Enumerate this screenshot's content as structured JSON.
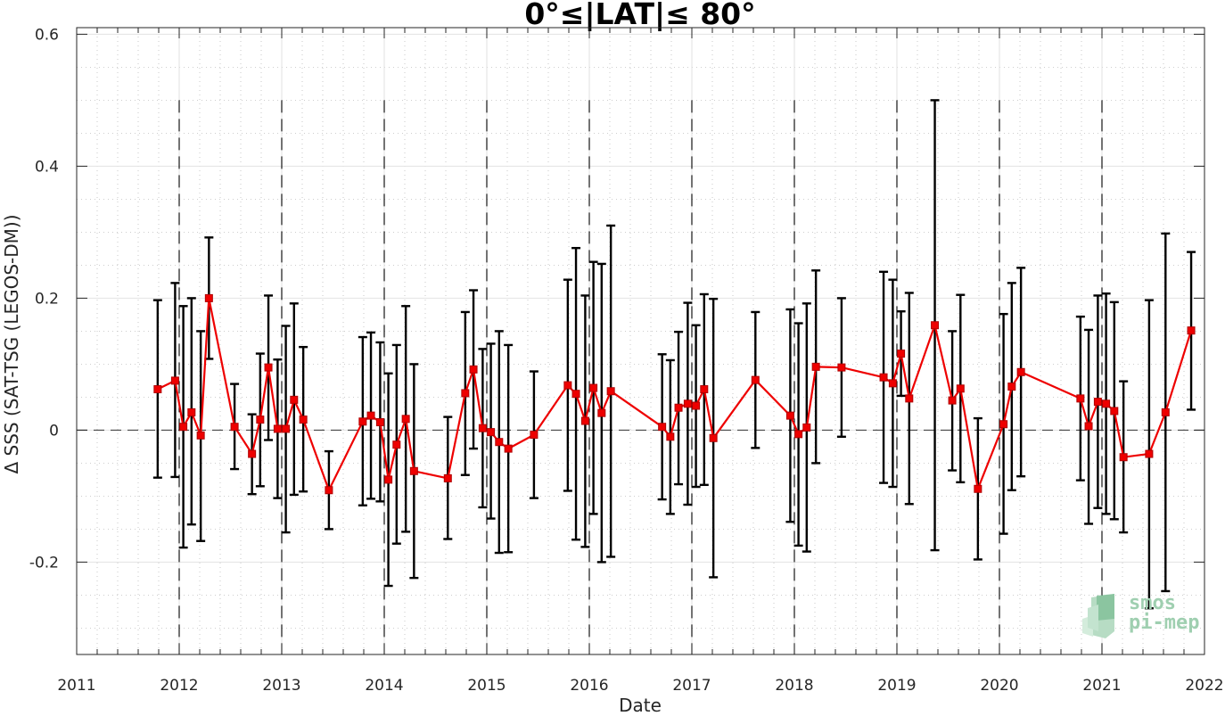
{
  "chart_data": {
    "type": "line",
    "title": "0°≤|LAT|≤ 80°",
    "xlabel": "Date",
    "ylabel": "Δ SSS (SAT-TSG (LEGOS-DM))",
    "xlim": [
      2011,
      2022
    ],
    "ylim": [
      -0.34,
      0.61
    ],
    "x_ticks": [
      2011,
      2012,
      2013,
      2014,
      2015,
      2016,
      2017,
      2018,
      2019,
      2020,
      2021,
      2022
    ],
    "x_tick_labels": [
      "2011",
      "2012",
      "2013",
      "2014",
      "2015",
      "2016",
      "2017",
      "2018",
      "2019",
      "2020",
      "2021",
      "2022"
    ],
    "y_ticks": [
      -0.2,
      0,
      0.2,
      0.4,
      0.6
    ],
    "y_tick_labels": [
      "-0.2",
      "0",
      "0.2",
      "0.4",
      "0.6"
    ],
    "grid": true,
    "minor_grid": true,
    "reference_line_y": 0,
    "year_boundary_lines": [
      2012,
      2013,
      2014,
      2015,
      2016,
      2017,
      2018,
      2019,
      2020,
      2021
    ],
    "series": [
      {
        "line_color": "#ee0000",
        "errorbar_color": "#000000",
        "marker": "square",
        "points": [
          {
            "x": 2011.79,
            "y": 0.062,
            "lo": -0.072,
            "hi": 0.197
          },
          {
            "x": 2011.96,
            "y": 0.075,
            "lo": -0.071,
            "hi": 0.223
          },
          {
            "x": 2012.04,
            "y": 0.005,
            "lo": -0.178,
            "hi": 0.188
          },
          {
            "x": 2012.12,
            "y": 0.027,
            "lo": -0.143,
            "hi": 0.2
          },
          {
            "x": 2012.21,
            "y": -0.008,
            "lo": -0.168,
            "hi": 0.15
          },
          {
            "x": 2012.29,
            "y": 0.2,
            "lo": 0.108,
            "hi": 0.292
          },
          {
            "x": 2012.54,
            "y": 0.005,
            "lo": -0.059,
            "hi": 0.07
          },
          {
            "x": 2012.71,
            "y": -0.036,
            "lo": -0.097,
            "hi": 0.024
          },
          {
            "x": 2012.79,
            "y": 0.016,
            "lo": -0.085,
            "hi": 0.116
          },
          {
            "x": 2012.87,
            "y": 0.095,
            "lo": -0.015,
            "hi": 0.204
          },
          {
            "x": 2012.96,
            "y": 0.002,
            "lo": -0.103,
            "hi": 0.107
          },
          {
            "x": 2013.04,
            "y": 0.002,
            "lo": -0.155,
            "hi": 0.158
          },
          {
            "x": 2013.12,
            "y": 0.046,
            "lo": -0.098,
            "hi": 0.192
          },
          {
            "x": 2013.21,
            "y": 0.016,
            "lo": -0.093,
            "hi": 0.126
          },
          {
            "x": 2013.46,
            "y": -0.091,
            "lo": -0.15,
            "hi": -0.032
          },
          {
            "x": 2013.79,
            "y": 0.013,
            "lo": -0.114,
            "hi": 0.141
          },
          {
            "x": 2013.87,
            "y": 0.022,
            "lo": -0.104,
            "hi": 0.148
          },
          {
            "x": 2013.96,
            "y": 0.012,
            "lo": -0.108,
            "hi": 0.133
          },
          {
            "x": 2014.04,
            "y": -0.075,
            "lo": -0.236,
            "hi": 0.086
          },
          {
            "x": 2014.12,
            "y": -0.022,
            "lo": -0.172,
            "hi": 0.129
          },
          {
            "x": 2014.21,
            "y": 0.017,
            "lo": -0.154,
            "hi": 0.188
          },
          {
            "x": 2014.29,
            "y": -0.062,
            "lo": -0.224,
            "hi": 0.1
          },
          {
            "x": 2014.62,
            "y": -0.073,
            "lo": -0.165,
            "hi": 0.02
          },
          {
            "x": 2014.79,
            "y": 0.056,
            "lo": -0.068,
            "hi": 0.179
          },
          {
            "x": 2014.87,
            "y": 0.092,
            "lo": -0.028,
            "hi": 0.212
          },
          {
            "x": 2014.96,
            "y": 0.003,
            "lo": -0.117,
            "hi": 0.123
          },
          {
            "x": 2015.04,
            "y": -0.003,
            "lo": -0.134,
            "hi": 0.131
          },
          {
            "x": 2015.12,
            "y": -0.018,
            "lo": -0.186,
            "hi": 0.15
          },
          {
            "x": 2015.21,
            "y": -0.028,
            "lo": -0.185,
            "hi": 0.129
          },
          {
            "x": 2015.46,
            "y": -0.007,
            "lo": -0.103,
            "hi": 0.089
          },
          {
            "x": 2015.79,
            "y": 0.068,
            "lo": -0.092,
            "hi": 0.228
          },
          {
            "x": 2015.87,
            "y": 0.055,
            "lo": -0.166,
            "hi": 0.276
          },
          {
            "x": 2015.96,
            "y": 0.014,
            "lo": -0.177,
            "hi": 0.204
          },
          {
            "x": 2016.04,
            "y": 0.064,
            "lo": -0.127,
            "hi": 0.255
          },
          {
            "x": 2016.12,
            "y": 0.026,
            "lo": -0.2,
            "hi": 0.252
          },
          {
            "x": 2016.21,
            "y": 0.059,
            "lo": -0.192,
            "hi": 0.31
          },
          {
            "x": 2016.71,
            "y": 0.005,
            "lo": -0.105,
            "hi": 0.115
          },
          {
            "x": 2016.79,
            "y": -0.01,
            "lo": -0.127,
            "hi": 0.106
          },
          {
            "x": 2016.87,
            "y": 0.034,
            "lo": -0.082,
            "hi": 0.149
          },
          {
            "x": 2016.96,
            "y": 0.04,
            "lo": -0.113,
            "hi": 0.193
          },
          {
            "x": 2017.04,
            "y": 0.037,
            "lo": -0.086,
            "hi": 0.159
          },
          {
            "x": 2017.12,
            "y": 0.062,
            "lo": -0.083,
            "hi": 0.206
          },
          {
            "x": 2017.21,
            "y": -0.012,
            "lo": -0.223,
            "hi": 0.199
          },
          {
            "x": 2017.62,
            "y": 0.076,
            "lo": -0.027,
            "hi": 0.179
          },
          {
            "x": 2017.96,
            "y": 0.022,
            "lo": -0.139,
            "hi": 0.183
          },
          {
            "x": 2018.04,
            "y": -0.006,
            "lo": -0.175,
            "hi": 0.162
          },
          {
            "x": 2018.12,
            "y": 0.004,
            "lo": -0.184,
            "hi": 0.192
          },
          {
            "x": 2018.21,
            "y": 0.096,
            "lo": -0.05,
            "hi": 0.242
          },
          {
            "x": 2018.46,
            "y": 0.095,
            "lo": -0.01,
            "hi": 0.2
          },
          {
            "x": 2018.87,
            "y": 0.08,
            "lo": -0.08,
            "hi": 0.24
          },
          {
            "x": 2018.96,
            "y": 0.071,
            "lo": -0.086,
            "hi": 0.228
          },
          {
            "x": 2019.04,
            "y": 0.116,
            "lo": 0.052,
            "hi": 0.18
          },
          {
            "x": 2019.12,
            "y": 0.048,
            "lo": -0.112,
            "hi": 0.208
          },
          {
            "x": 2019.37,
            "y": 0.159,
            "lo": -0.182,
            "hi": 0.5
          },
          {
            "x": 2019.54,
            "y": 0.045,
            "lo": -0.061,
            "hi": 0.15
          },
          {
            "x": 2019.62,
            "y": 0.063,
            "lo": -0.079,
            "hi": 0.205
          },
          {
            "x": 2019.79,
            "y": -0.089,
            "lo": -0.196,
            "hi": 0.018
          },
          {
            "x": 2020.04,
            "y": 0.009,
            "lo": -0.157,
            "hi": 0.176
          },
          {
            "x": 2020.12,
            "y": 0.066,
            "lo": -0.091,
            "hi": 0.223
          },
          {
            "x": 2020.21,
            "y": 0.088,
            "lo": -0.07,
            "hi": 0.246
          },
          {
            "x": 2020.79,
            "y": 0.048,
            "lo": -0.076,
            "hi": 0.172
          },
          {
            "x": 2020.87,
            "y": 0.006,
            "lo": -0.142,
            "hi": 0.152
          },
          {
            "x": 2020.96,
            "y": 0.043,
            "lo": -0.118,
            "hi": 0.204
          },
          {
            "x": 2021.04,
            "y": 0.04,
            "lo": -0.127,
            "hi": 0.207
          },
          {
            "x": 2021.12,
            "y": 0.029,
            "lo": -0.135,
            "hi": 0.194
          },
          {
            "x": 2021.21,
            "y": -0.041,
            "lo": -0.155,
            "hi": 0.074
          },
          {
            "x": 2021.46,
            "y": -0.036,
            "lo": -0.27,
            "hi": 0.197
          },
          {
            "x": 2021.62,
            "y": 0.027,
            "lo": -0.244,
            "hi": 0.298
          },
          {
            "x": 2021.87,
            "y": 0.151,
            "lo": 0.031,
            "hi": 0.27
          }
        ]
      }
    ]
  },
  "logo": {
    "line1": "smos",
    "line2": "pi-mep"
  }
}
